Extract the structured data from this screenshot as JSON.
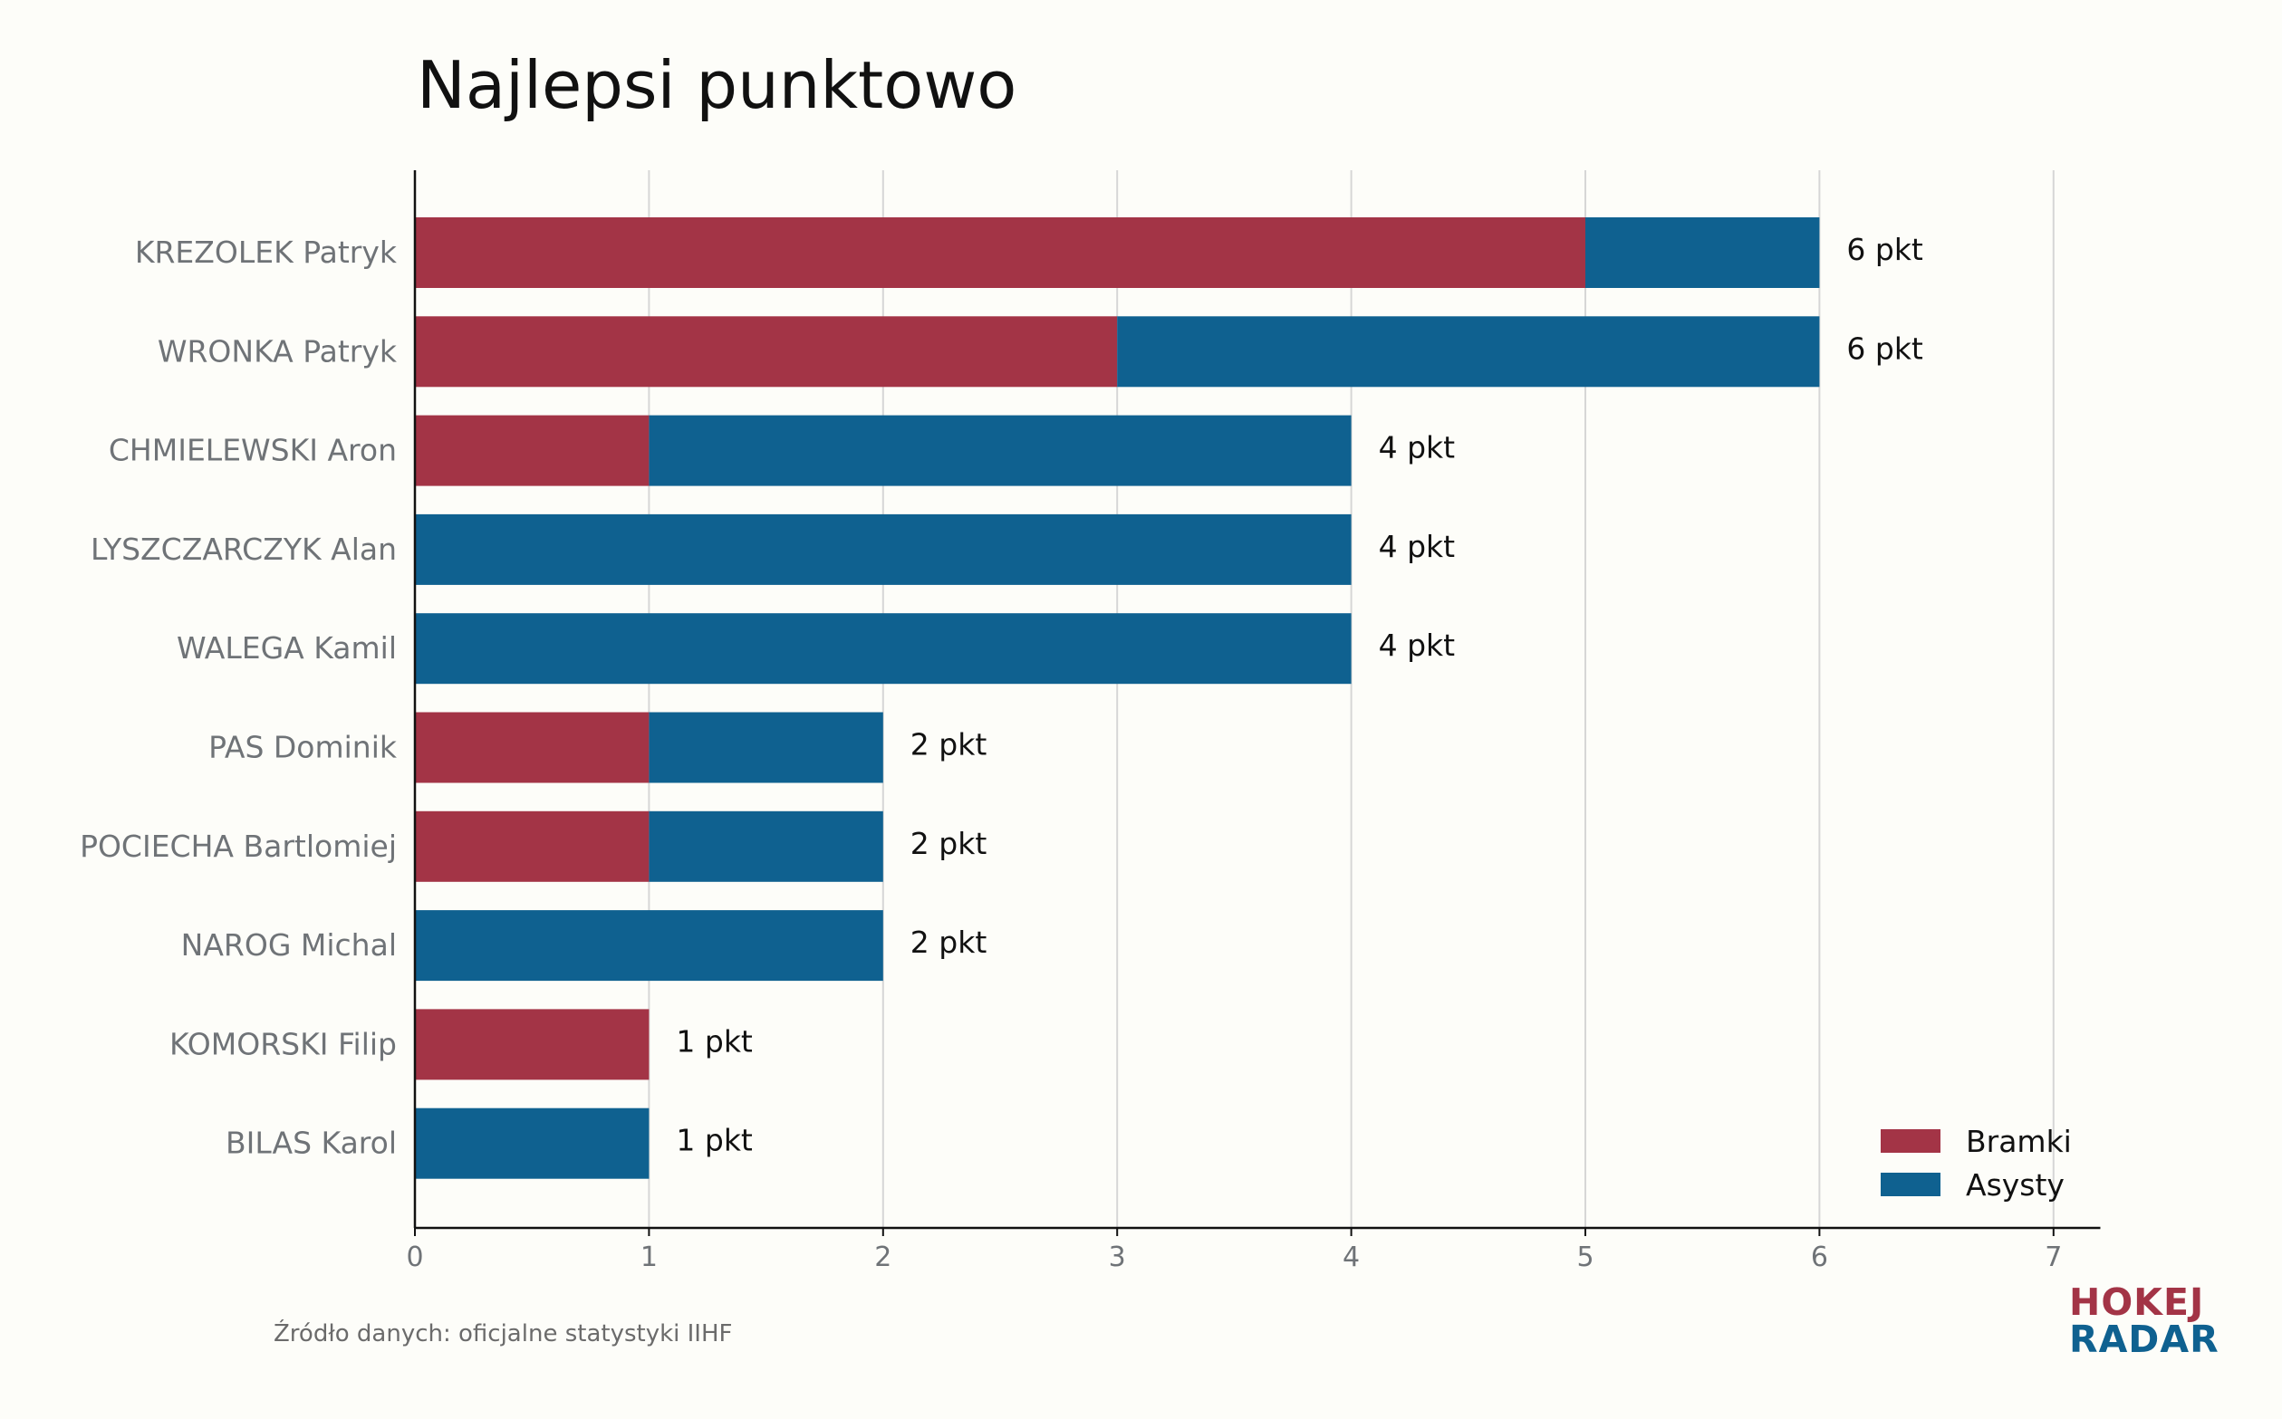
{
  "title": "Najlepsi punktowo",
  "source": "Źródło danych: oficjalne statystyki IIHF",
  "logo": {
    "line1": "HOKEJ",
    "line2": "RADAR"
  },
  "colors": {
    "goals": "#a33446",
    "assists": "#0f6190",
    "grid": "#d6d6d6",
    "axis": "#111111",
    "label": "#6f7377",
    "background": "#fdfdf9"
  },
  "legend": {
    "goals_label": "Bramki",
    "assists_label": "Asysty",
    "position": "bottom-right"
  },
  "chart_data": {
    "type": "bar",
    "orientation": "horizontal",
    "stacked": true,
    "categories": [
      "KREZOLEK Patryk",
      "WRONKA Patryk",
      "CHMIELEWSKI Aron",
      "LYSZCZARCZYK Alan",
      "WALEGA Kamil",
      "PAS Dominik",
      "POCIECHA Bartlomiej",
      "NAROG Michal",
      "KOMORSKI Filip",
      "BILAS Karol"
    ],
    "series": [
      {
        "name": "Bramki",
        "values": [
          5,
          3,
          1,
          0,
          0,
          1,
          1,
          0,
          1,
          0
        ]
      },
      {
        "name": "Asysty",
        "values": [
          1,
          3,
          3,
          4,
          4,
          1,
          1,
          2,
          0,
          1
        ]
      }
    ],
    "data_labels": [
      "6 pkt",
      "6 pkt",
      "4 pkt",
      "4 pkt",
      "4 pkt",
      "2 pkt",
      "2 pkt",
      "2 pkt",
      "1 pkt",
      "1 pkt"
    ],
    "xticks": [
      0,
      1,
      2,
      3,
      4,
      5,
      6,
      7
    ],
    "xlim": [
      0,
      7.2
    ],
    "grid": true
  }
}
